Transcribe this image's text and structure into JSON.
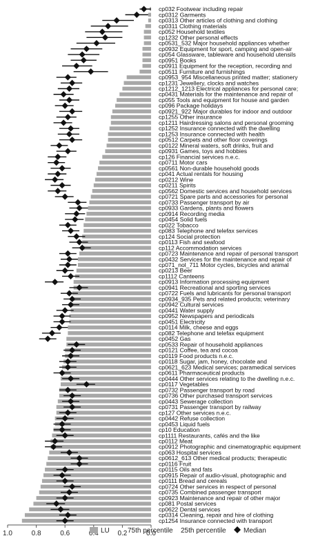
{
  "chart_data": {
    "type": "bar",
    "categories": [
      "cp032 Footwear including repair",
      "cp0312 Garments",
      "cp0313 Other articles of clothing and clothing",
      "cp0311 Clothing materials",
      "cp052 Household textiles",
      "cp1232 Other personal effects",
      "cp0531_532 Major household appliances whether",
      "cp0932 Equipment for sport, camping and open-air",
      "cp054 Glassware, tableware and household utensils",
      "cp0951 Books",
      "cp0911 Equipment for the reception, recording and",
      "cp0511 Furniture and furnishings",
      "cp0953_954 Miscellaneous printed matter; stationery",
      "cp1231 Jewellery, clocks and watches",
      "cp1212_1213 Electrical appliances for personal care;",
      "cp0431 Materials for the maintenance and repair of",
      "cp055 Tools and equipment for house and garden",
      "cp096 Package holidays",
      "cp0921_922 Major durables for indoor and outdoor",
      "cp1255 Other insurance",
      "cp1211 Hairdressing salons and personal grooming",
      "cp1252 Insurance connected with the dwelling",
      "cp1253 Insurance connected with health",
      "cp0512 Carpets and other floor coverings",
      "cp0122 Mineral waters, soft drinks, fruit and",
      "cp0931 Games, toys and hobbies",
      "cp126 Financial services n.e.c.",
      "cp0711 Motor cars",
      "cp0561 Non-durable household goods",
      "cp041 Actual rentals for housing",
      "cp0212 Wine",
      "cp0211 Spirits",
      "cp0562 Domestic services and household services",
      "cp0721 Spare parts and accessories for personal",
      "cp0733 Passenger transport by air",
      "cp0933 Gardens, plants and flowers",
      "cp0914 Recording media",
      "cp0454 Solid fuels",
      "cp022 Tobacco",
      "cp083 Telephone and telefax services",
      "cp124 Social protection",
      "cp0113 Fish and seafood",
      "cp112 Accommodation services",
      "cp0723 Maintenance and repair of personal transport",
      "cp0432 Services for the maintenance and repair of",
      "cp071_nol_711 Motor cycles, bicycles and animal",
      "cp0213 Beer",
      "cp1112 Canteens",
      "cp0913 Information processing equipment",
      "cp0941 Recreational and sporting services",
      "cp0722 Fuels and lubricants for personal transport",
      "cp0934_935 Pets and related products; veterinary",
      "cp0942 Cultural services",
      "cp0441 Water supply",
      "cp0952 Newspapers and periodicals",
      "cp0451 Electricity",
      "cp0114 Milk, cheese and eggs",
      "cp082 Telephone and telefax equipment",
      "cp0452 Gas",
      "cp0533 Repair of household appliances",
      "cp0121 Coffee, tea and cocoa",
      "cp0119 Food products n.e.c.",
      "cp0118 Sugar, jam, honey, chocolate and",
      "cp0621_623 Medical services; paramedical services",
      "cp0611 Pharmaceutical products",
      "cp0444 Other services relating to the dwelling n.e.c.",
      "cp0117 Vegetables",
      "cp0732 Passenger transport by road",
      "cp0736 Other purchased transport services",
      "cp0443 Sewerage collection",
      "cp0731 Passenger transport by railway",
      "cp127 Other services n.e.c.",
      "cp0442 Refuse collection",
      "cp0453 Liquid fuels",
      "cp10 Education",
      "cp1111 Restaurants, cafés and the like",
      "cp0112 Meat",
      "cp0912 Photographic and cinematographic equipment",
      "cp063 Hospital services",
      "cp0612_613 Other medical products; therapeutic",
      "cp0116 Fruit",
      "cp0115 Oils and fats",
      "cp0915 Repair of audio-visual, photographic and",
      "cp0111 Bread and cereals",
      "cp0724 Other services in respect of personal",
      "cp0735 Combined passenger transport",
      "cp0923 Maintenance and repair of other major",
      "cp081 Postal services",
      "cp0622 Dental services",
      "cp0314 Cleaning, repair and hire of clothing",
      "cp1254 Insurance connected with transport"
    ],
    "series": [
      {
        "name": "LU",
        "values": [
          0.01,
          0.02,
          0.02,
          0.04,
          0.05,
          0.05,
          0.05,
          0.06,
          0.06,
          0.06,
          0.06,
          0.08,
          0.17,
          0.19,
          0.2,
          0.22,
          0.24,
          0.25,
          0.27,
          0.28,
          0.28,
          0.29,
          0.3,
          0.3,
          0.31,
          0.32,
          0.34,
          0.36,
          0.37,
          0.38,
          0.39,
          0.4,
          0.41,
          0.42,
          0.43,
          0.44,
          0.45,
          0.46,
          0.47,
          0.47,
          0.48,
          0.48,
          0.49,
          0.5,
          0.51,
          0.51,
          0.52,
          0.53,
          0.54,
          0.54,
          0.55,
          0.55,
          0.56,
          0.56,
          0.57,
          0.57,
          0.58,
          0.58,
          0.59,
          0.59,
          0.6,
          0.6,
          0.61,
          0.62,
          0.62,
          0.63,
          0.63,
          0.64,
          0.64,
          0.65,
          0.66,
          0.66,
          0.67,
          0.67,
          0.68,
          0.69,
          0.7,
          0.7,
          0.71,
          0.72,
          0.73,
          0.74,
          0.75,
          0.76,
          0.77,
          0.78,
          0.8,
          0.82,
          0.85,
          0.88,
          0.9
        ]
      },
      {
        "name": "Median",
        "values": [
          0.05,
          0.1,
          0.24,
          0.3,
          0.34,
          0.32,
          0.38,
          0.45,
          0.48,
          0.47,
          0.52,
          0.42,
          0.58,
          0.55,
          0.57,
          0.61,
          0.57,
          0.6,
          0.55,
          0.58,
          0.61,
          0.56,
          0.57,
          0.55,
          0.64,
          0.58,
          0.65,
          0.66,
          0.62,
          0.65,
          0.67,
          0.62,
          0.65,
          0.6,
          0.51,
          0.5,
          0.52,
          0.53,
          0.58,
          0.56,
          0.52,
          0.5,
          0.48,
          0.58,
          0.57,
          0.58,
          0.6,
          0.56,
          0.67,
          0.5,
          0.57,
          0.55,
          0.56,
          0.6,
          0.62,
          0.62,
          0.64,
          0.69,
          0.72,
          0.52,
          0.55,
          0.56,
          0.58,
          0.58,
          0.62,
          0.56,
          0.45,
          0.58,
          0.55,
          0.56,
          0.55,
          0.58,
          0.6,
          0.62,
          0.62,
          0.6,
          0.67,
          0.68,
          0.57,
          0.5,
          0.5,
          0.6,
          0.62,
          0.6,
          0.55,
          0.57,
          0.6,
          0.66,
          0.63,
          0.58,
          0.6
        ]
      },
      {
        "name": "25th percentile",
        "values": [
          0.0,
          0.02,
          0.12,
          0.16,
          0.2,
          0.2,
          0.25,
          0.34,
          0.36,
          0.38,
          0.41,
          0.3,
          0.52,
          0.48,
          0.5,
          0.54,
          0.5,
          0.54,
          0.48,
          0.52,
          0.55,
          0.5,
          0.5,
          0.48,
          0.58,
          0.52,
          0.59,
          0.6,
          0.56,
          0.59,
          0.61,
          0.56,
          0.59,
          0.54,
          0.45,
          0.44,
          0.46,
          0.47,
          0.52,
          0.5,
          0.46,
          0.44,
          0.42,
          0.52,
          0.51,
          0.52,
          0.54,
          0.5,
          0.61,
          0.44,
          0.51,
          0.49,
          0.5,
          0.54,
          0.56,
          0.56,
          0.58,
          0.63,
          0.66,
          0.46,
          0.49,
          0.5,
          0.52,
          0.52,
          0.56,
          0.5,
          0.39,
          0.52,
          0.49,
          0.5,
          0.49,
          0.52,
          0.54,
          0.56,
          0.56,
          0.54,
          0.61,
          0.62,
          0.51,
          0.44,
          0.44,
          0.54,
          0.56,
          0.54,
          0.49,
          0.51,
          0.54,
          0.6,
          0.57,
          0.52,
          0.54
        ]
      },
      {
        "name": "75th percentile",
        "values": [
          0.08,
          0.18,
          0.34,
          0.42,
          0.46,
          0.45,
          0.52,
          0.56,
          0.58,
          0.56,
          0.62,
          0.54,
          0.66,
          0.63,
          0.65,
          0.68,
          0.64,
          0.67,
          0.64,
          0.66,
          0.68,
          0.64,
          0.65,
          0.64,
          0.7,
          0.66,
          0.72,
          0.72,
          0.7,
          0.72,
          0.74,
          0.7,
          0.72,
          0.67,
          0.58,
          0.57,
          0.6,
          0.6,
          0.64,
          0.62,
          0.58,
          0.57,
          0.55,
          0.64,
          0.63,
          0.64,
          0.66,
          0.62,
          0.74,
          0.57,
          0.63,
          0.61,
          0.62,
          0.66,
          0.68,
          0.68,
          0.7,
          0.76,
          0.78,
          0.58,
          0.61,
          0.62,
          0.64,
          0.64,
          0.68,
          0.62,
          0.52,
          0.64,
          0.61,
          0.62,
          0.61,
          0.64,
          0.66,
          0.68,
          0.68,
          0.66,
          0.74,
          0.74,
          0.63,
          0.56,
          0.56,
          0.66,
          0.68,
          0.66,
          0.61,
          0.63,
          0.66,
          0.73,
          0.7,
          0.64,
          0.66
        ]
      }
    ],
    "x_ticks": [
      "1.0",
      "0.8",
      "0.6",
      "0.4",
      "0.2",
      "0.0"
    ],
    "xlim": [
      1.0,
      0.0
    ],
    "x_reversed": true,
    "legend": {
      "placement": "bottom",
      "items": [
        {
          "label": "LU",
          "symbol": "bar"
        },
        {
          "label": "75th percentile",
          "symbol": "none"
        },
        {
          "label": "25th percentile",
          "symbol": "none"
        },
        {
          "label": "Median",
          "symbol": "diamond"
        }
      ]
    },
    "colors": {
      "bar": "#a8a8a8",
      "median": "#111111",
      "whisker": "#111111",
      "axis": "#555555"
    },
    "title": "",
    "xlabel": "",
    "ylabel": ""
  }
}
